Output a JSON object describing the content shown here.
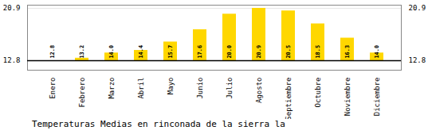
{
  "chart_data": {
    "type": "bar",
    "title": "Temperaturas Medias en rinconada de la sierra la",
    "categories": [
      "Enero",
      "Febrero",
      "Marzo",
      "Abril",
      "Mayo",
      "Junio",
      "Julio",
      "Agosto",
      "Septiembre",
      "Octubre",
      "Noviembre",
      "Diciembre"
    ],
    "values": [
      12.8,
      13.2,
      14.0,
      14.4,
      15.7,
      17.6,
      20.0,
      20.9,
      20.5,
      18.5,
      16.3,
      14.0
    ],
    "value_labels": [
      "12.8",
      "13.2",
      "14.0",
      "14.4",
      "15.7",
      "17.6",
      "20.0",
      "20.9",
      "20.5",
      "18.5",
      "16.3",
      "14.0"
    ],
    "baseline": 12.8,
    "color": "#FFD700",
    "ylim": [
      11.342,
      21.386
    ],
    "yticks": [
      20.9,
      12.8
    ],
    "grid": true,
    "data_labels": true
  }
}
